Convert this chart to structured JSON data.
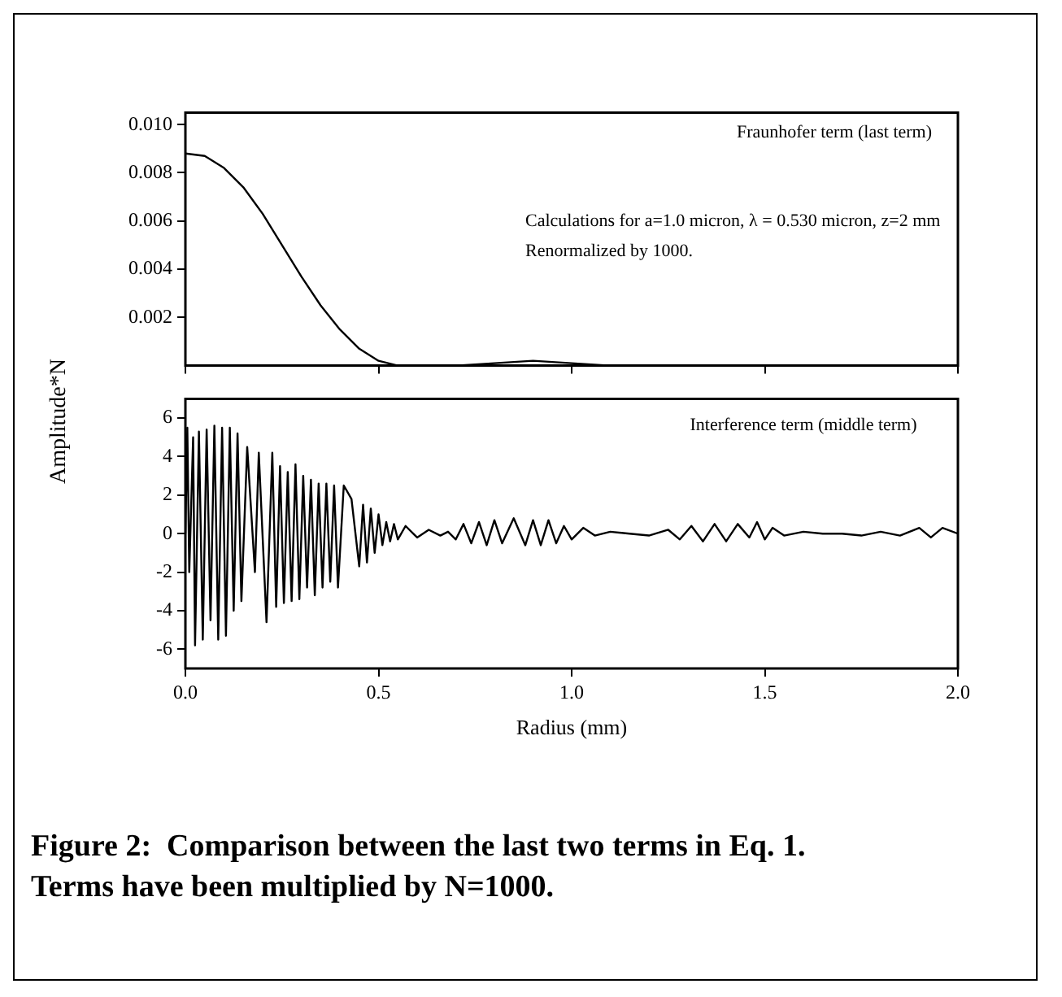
{
  "chart_data": [
    {
      "type": "line",
      "ylabel": "Amplitude*N",
      "annotations": [
        "Fraunhofer term (last term)",
        "Calculations for a=1.0 micron, λ = 0.530 micron, z=2 mm",
        "Renormalized by 1000."
      ],
      "xlim": [
        0,
        2
      ],
      "ylim": [
        0,
        0.0105
      ],
      "yticks": [
        0.002,
        0.004,
        0.006,
        0.008,
        {
          "value": 0.01,
          "label": "0.010"
        }
      ],
      "xticks": [
        0,
        0.5,
        1,
        1.5,
        2
      ],
      "tick_labels": "y",
      "grid": false,
      "legend": false,
      "marker": "none",
      "line_style": "solid",
      "series": [
        {
          "color": "#000000",
          "x": [
            0,
            0.05,
            0.1,
            0.15,
            0.2,
            0.25,
            0.3,
            0.35,
            0.4,
            0.45,
            0.5,
            0.55,
            0.6,
            0.7,
            0.8,
            0.9,
            1.0,
            1.1,
            1.2,
            1.4,
            1.6,
            1.8,
            2.0
          ],
          "values": [
            0.0088,
            0.0087,
            0.0082,
            0.0074,
            0.0063,
            0.005,
            0.0037,
            0.0025,
            0.0015,
            0.0007,
            0.0002,
            0,
            0,
            0,
            0.0001,
            0.0002,
            0.0001,
            0,
            0,
            0,
            0,
            0,
            0
          ]
        }
      ]
    },
    {
      "type": "line",
      "xlabel": "Radius (mm)",
      "annotations": [
        "Interference term (middle term)",
        "Figure 2:  Comparison between the last two terms in Eq. 1.  Terms have been multiplied by N=1000."
      ],
      "xlim": [
        0,
        2
      ],
      "ylim": [
        -7,
        7
      ],
      "yticks": [
        -6,
        -4,
        -2,
        0,
        2,
        4,
        6
      ],
      "xticks": [
        {
          "value": 0,
          "label": "0.0"
        },
        {
          "value": 0.5,
          "label": "0.5"
        },
        {
          "value": 1,
          "label": "1.0"
        },
        {
          "value": 1.5,
          "label": "1.5"
        },
        {
          "value": 2,
          "label": "2.0"
        }
      ],
      "grid": false,
      "legend": false,
      "marker": "none",
      "line_style": "solid",
      "series": [
        {
          "color": "#000000",
          "x": [
            0,
            0.005,
            0.01,
            0.02,
            0.025,
            0.035,
            0.045,
            0.055,
            0.065,
            0.075,
            0.085,
            0.095,
            0.105,
            0.115,
            0.125,
            0.135,
            0.145,
            0.16,
            0.18,
            0.19,
            0.21,
            0.225,
            0.235,
            0.245,
            0.255,
            0.265,
            0.275,
            0.285,
            0.295,
            0.305,
            0.315,
            0.325,
            0.335,
            0.345,
            0.355,
            0.365,
            0.375,
            0.385,
            0.395,
            0.41,
            0.43,
            0.45,
            0.46,
            0.47,
            0.48,
            0.49,
            0.5,
            0.51,
            0.52,
            0.53,
            0.54,
            0.55,
            0.57,
            0.6,
            0.63,
            0.66,
            0.68,
            0.7,
            0.72,
            0.74,
            0.76,
            0.78,
            0.8,
            0.82,
            0.85,
            0.88,
            0.9,
            0.92,
            0.94,
            0.96,
            0.98,
            1.0,
            1.03,
            1.06,
            1.1,
            1.15,
            1.2,
            1.25,
            1.28,
            1.31,
            1.34,
            1.37,
            1.4,
            1.43,
            1.46,
            1.48,
            1.5,
            1.52,
            1.55,
            1.6,
            1.65,
            1.7,
            1.75,
            1.8,
            1.85,
            1.9,
            1.93,
            1.96,
            2.0
          ],
          "values": [
            0,
            5.5,
            -2,
            5,
            -5.8,
            5.3,
            -5.5,
            5.4,
            -4.5,
            5.6,
            -5.5,
            5.5,
            -5.3,
            5.5,
            -4,
            5.2,
            -3.5,
            4.5,
            -2,
            4.2,
            -4.6,
            4.2,
            -3.8,
            3.5,
            -3.6,
            3.2,
            -3.5,
            3.6,
            -3.4,
            3,
            -2.8,
            2.8,
            -3.2,
            2.6,
            -2.8,
            2.6,
            -2.5,
            2.5,
            -2.8,
            2.5,
            1.8,
            -1.7,
            1.5,
            -1.5,
            1.3,
            -1,
            1,
            -0.6,
            0.6,
            -0.4,
            0.5,
            -0.3,
            0.4,
            -0.2,
            0.2,
            -0.1,
            0.1,
            -0.3,
            0.5,
            -0.5,
            0.6,
            -0.6,
            0.7,
            -0.5,
            0.8,
            -0.6,
            0.7,
            -0.6,
            0.7,
            -0.5,
            0.4,
            -0.3,
            0.3,
            -0.1,
            0.1,
            0,
            -0.1,
            0.2,
            -0.3,
            0.4,
            -0.4,
            0.5,
            -0.4,
            0.5,
            -0.2,
            0.6,
            -0.3,
            0.3,
            -0.1,
            0.1,
            0,
            0,
            -0.1,
            0.1,
            -0.1,
            0.3,
            -0.2,
            0.3,
            0
          ]
        }
      ]
    }
  ]
}
